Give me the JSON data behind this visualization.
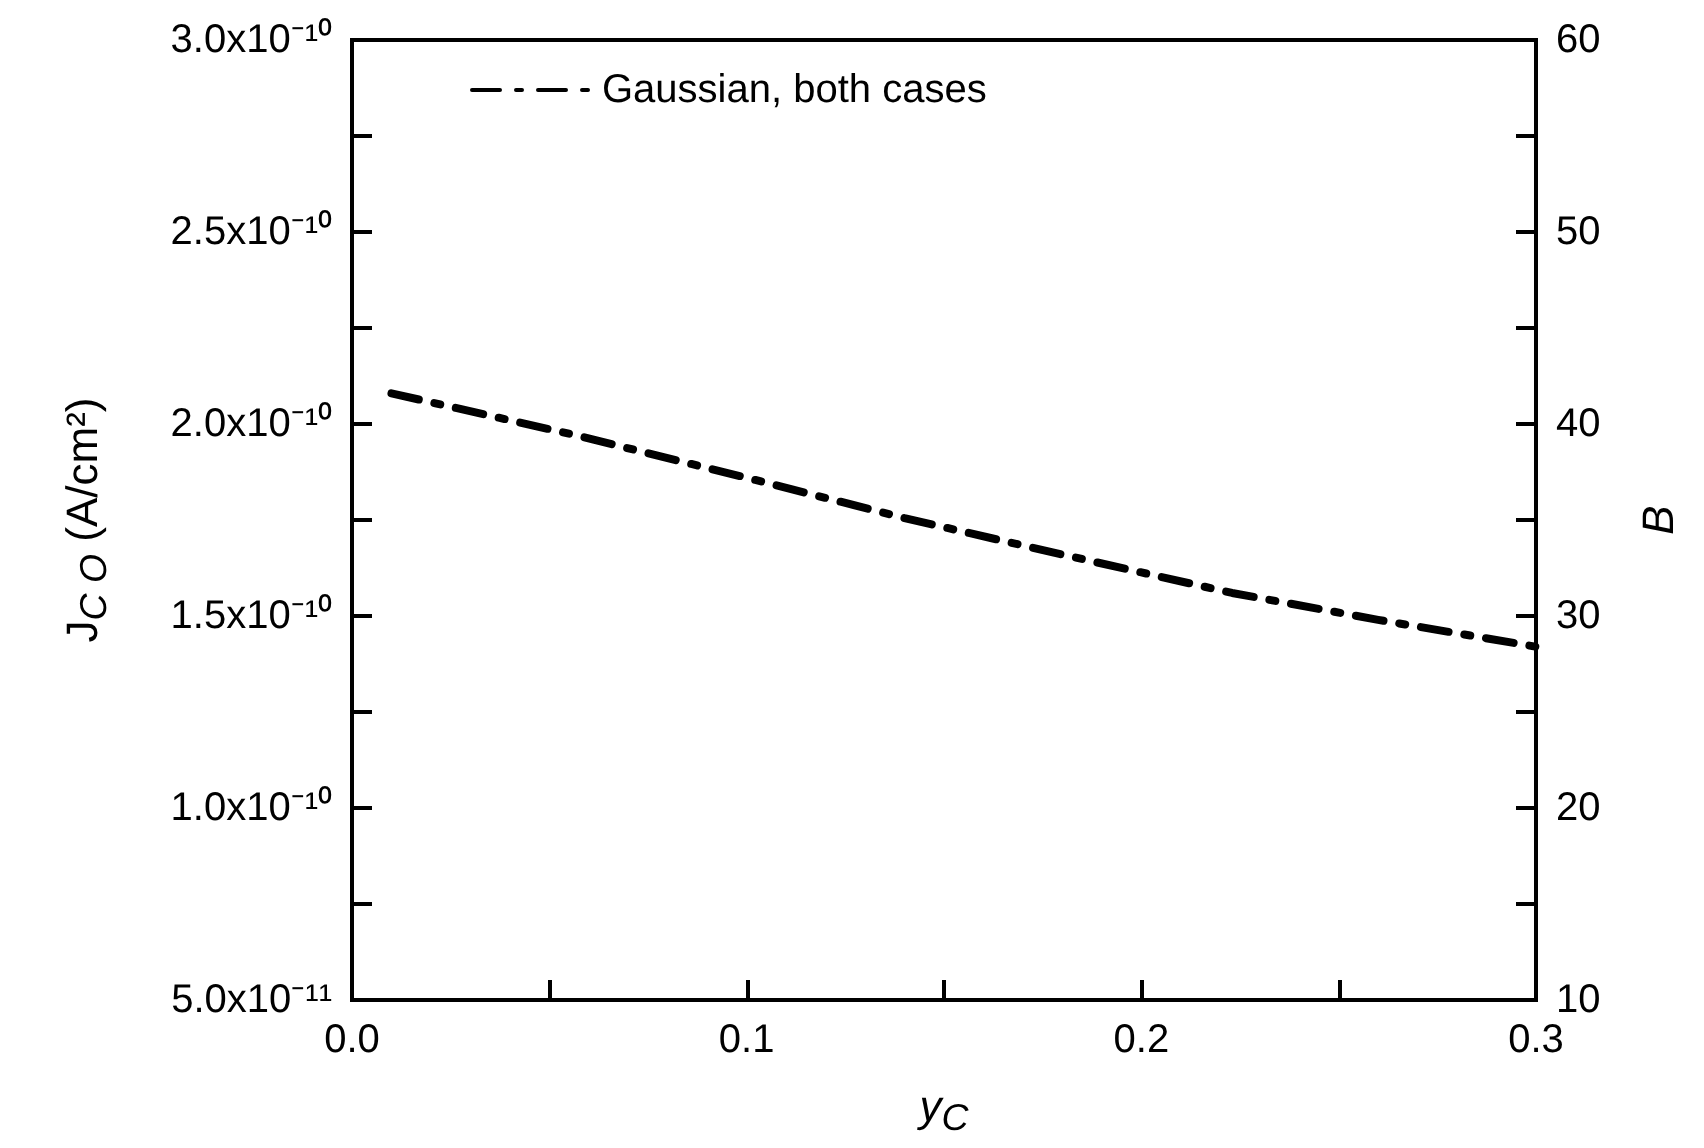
{
  "chart_data": {
    "type": "line",
    "xlabel": "y$_{C}$",
    "ylabel": "J$_{C O}$ (A/cm²)",
    "y2label": "B",
    "xlim": [
      0,
      0.3
    ],
    "xticks": [
      {
        "value": 0,
        "label": "0.0"
      },
      {
        "value": 0.05,
        "label": null
      },
      0.1,
      {
        "value": 0.15,
        "label": null
      },
      0.2,
      {
        "value": 0.25,
        "label": null
      },
      0.3
    ],
    "ylim": [
      5e-11,
      3e-10
    ],
    "yticks": [
      {
        "value": 5e-11,
        "label": "5.0x10⁻¹¹"
      },
      {
        "value": 7.5e-11,
        "label": null
      },
      {
        "value": 1e-10,
        "label": "1.0x10⁻¹⁰"
      },
      {
        "value": 1.25e-10,
        "label": null
      },
      {
        "value": 1.5e-10,
        "label": "1.5x10⁻¹⁰"
      },
      {
        "value": 1.75e-10,
        "label": null
      },
      {
        "value": 2e-10,
        "label": "2.0x10⁻¹⁰"
      },
      {
        "value": 2.25e-10,
        "label": null
      },
      {
        "value": 2.5e-10,
        "label": "2.5x10⁻¹⁰"
      },
      {
        "value": 2.75e-10,
        "label": null
      },
      {
        "value": 3e-10,
        "label": "3.0x10⁻¹⁰"
      }
    ],
    "y2lim": [
      10,
      60
    ],
    "y2ticks": [
      10,
      {
        "value": 15,
        "label": null
      },
      20,
      {
        "value": 25,
        "label": null
      },
      30,
      {
        "value": 35,
        "label": null
      },
      40,
      {
        "value": 45,
        "label": null
      },
      50,
      {
        "value": 55,
        "label": null
      },
      60
    ],
    "series": [
      {
        "name": "Gaussian, both cases",
        "color": "#000000",
        "line_style": "dashdot",
        "x": [
          0.01,
          0.057,
          0.1,
          0.14,
          0.18,
          0.223,
          0.26,
          0.3
        ],
        "values": [
          2.08e-10,
          1.97e-10,
          1.86e-10,
          1.755e-10,
          1.66e-10,
          1.56e-10,
          1.49e-10,
          1.42e-10
        ]
      }
    ],
    "legend": "top left",
    "marker": "none",
    "grid": false
  }
}
